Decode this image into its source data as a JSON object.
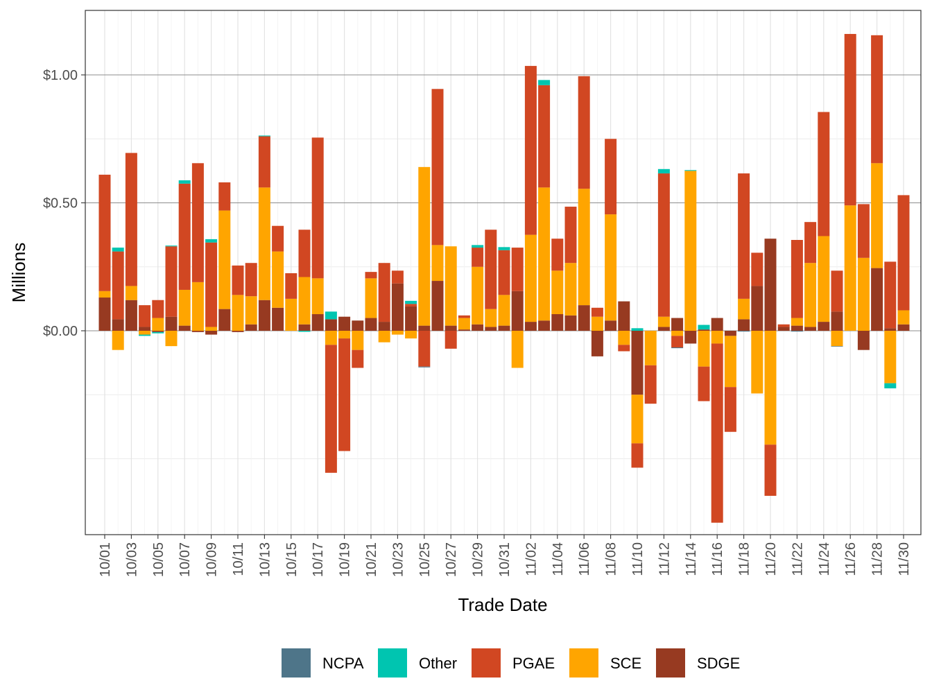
{
  "chart_data": {
    "type": "bar",
    "stacked": true,
    "title": "",
    "xlabel": "Trade Date",
    "ylabel": "Millions",
    "ylim": [
      -0.78,
      1.25
    ],
    "y_ticks": [
      0,
      0.5,
      1.0
    ],
    "y_tick_labels": [
      "$0.00",
      "$0.50",
      "$1.00"
    ],
    "categories": [
      "10/01",
      "10/02",
      "10/03",
      "10/04",
      "10/05",
      "10/06",
      "10/07",
      "10/08",
      "10/09",
      "10/10",
      "10/11",
      "10/12",
      "10/13",
      "10/14",
      "10/15",
      "10/16",
      "10/17",
      "10/18",
      "10/19",
      "10/20",
      "10/21",
      "10/22",
      "10/23",
      "10/24",
      "10/25",
      "10/26",
      "10/27",
      "10/28",
      "10/29",
      "10/30",
      "10/31",
      "11/01",
      "11/02",
      "11/03",
      "11/04",
      "11/05",
      "11/06",
      "11/07",
      "11/08",
      "11/09",
      "11/10",
      "11/11",
      "11/12",
      "11/13",
      "11/14",
      "11/15",
      "11/16",
      "11/17",
      "11/18",
      "11/19",
      "11/20",
      "11/21",
      "11/22",
      "11/23",
      "11/24",
      "11/25",
      "11/26",
      "11/27",
      "11/28",
      "11/29",
      "11/30"
    ],
    "x_tick_labels": [
      "10/01",
      "10/03",
      "10/05",
      "10/07",
      "10/09",
      "10/11",
      "10/13",
      "10/15",
      "10/17",
      "10/19",
      "10/21",
      "10/23",
      "10/25",
      "10/27",
      "10/29",
      "10/31",
      "11/02",
      "11/04",
      "11/06",
      "11/08",
      "11/10",
      "11/12",
      "11/14",
      "11/16",
      "11/18",
      "11/20",
      "11/22",
      "11/24",
      "11/26",
      "11/28",
      "11/30"
    ],
    "series_order": [
      "SDGE",
      "SCE",
      "PGAE",
      "Other",
      "NCPA"
    ],
    "series": [
      {
        "name": "NCPA",
        "color": "#4e7589",
        "values": [
          0,
          0,
          0,
          0,
          0,
          0,
          0,
          0,
          0,
          0,
          0,
          0,
          0,
          0,
          0,
          0,
          0,
          0,
          0,
          0,
          0,
          0,
          0,
          0,
          -0.003,
          0,
          0,
          0,
          0,
          0,
          0,
          0,
          0,
          0,
          0,
          0,
          0,
          0,
          0,
          0,
          0,
          0,
          0,
          -0.003,
          0,
          0,
          0,
          0,
          -0.003,
          0,
          0,
          0,
          -0.003,
          0,
          0,
          -0.002,
          0,
          0,
          0,
          0,
          0
        ]
      },
      {
        "name": "Other",
        "color": "#00c5b0",
        "values": [
          0,
          0.015,
          0,
          -0.005,
          -0.005,
          0.003,
          0.013,
          0,
          0.013,
          0,
          0,
          0,
          0.003,
          0,
          0,
          -0.004,
          0,
          0.03,
          0,
          0,
          0,
          0,
          0,
          0.012,
          0,
          0,
          0,
          0,
          0.01,
          0,
          0.012,
          0,
          0,
          0.02,
          0,
          0,
          0,
          0,
          0,
          0,
          0.01,
          0,
          0.017,
          0,
          0.003,
          0.018,
          0,
          0,
          0,
          0,
          0,
          0,
          0,
          0,
          0,
          0,
          0,
          0,
          0,
          -0.02,
          0
        ]
      },
      {
        "name": "PGAE",
        "color": "#d14722",
        "values": [
          0.455,
          0.265,
          0.52,
          0.085,
          0.07,
          0.275,
          0.415,
          0.465,
          0.33,
          0.11,
          0.115,
          0.13,
          0.2,
          0.1,
          0.1,
          0.185,
          0.55,
          -0.5,
          -0.44,
          -0.07,
          0.025,
          0.23,
          0.05,
          0.01,
          -0.14,
          0.61,
          -0.07,
          0.01,
          0.075,
          0.31,
          0.175,
          0.17,
          0.66,
          0.4,
          0.125,
          0.22,
          0.44,
          0.035,
          0.295,
          -0.025,
          -0.095,
          -0.15,
          0.56,
          -0.045,
          0,
          -0.135,
          -0.7,
          -0.175,
          0.49,
          0.13,
          -0.2,
          0.01,
          0.305,
          0.16,
          0.485,
          0.16,
          0.67,
          0.21,
          0.5,
          0.26,
          0.45
        ]
      },
      {
        "name": "SCE",
        "color": "#ffa500",
        "values": [
          0.025,
          -0.075,
          0.055,
          -0.015,
          0.05,
          -0.06,
          0.14,
          0.19,
          0.015,
          0.385,
          0.14,
          0.11,
          0.44,
          0.22,
          0.125,
          0.185,
          0.14,
          -0.055,
          -0.03,
          -0.075,
          0.155,
          -0.045,
          -0.015,
          -0.03,
          0.62,
          0.14,
          0.31,
          0.045,
          0.225,
          0.07,
          0.12,
          -0.145,
          0.34,
          0.52,
          0.17,
          0.205,
          0.455,
          0.055,
          0.415,
          -0.055,
          -0.19,
          -0.135,
          0.04,
          -0.02,
          0.625,
          -0.14,
          -0.05,
          -0.2,
          0.08,
          -0.245,
          -0.445,
          0,
          0.03,
          0.25,
          0.335,
          -0.06,
          0.49,
          0.285,
          0.41,
          -0.205,
          0.055
        ]
      },
      {
        "name": "SDGE",
        "color": "#973a21",
        "values": [
          0.13,
          0.045,
          0.12,
          0.015,
          -0.005,
          0.055,
          0.02,
          -0.005,
          -0.015,
          0.085,
          -0.005,
          0.025,
          0.12,
          0.09,
          0,
          0.025,
          0.065,
          0.045,
          0.055,
          0.04,
          0.05,
          0.035,
          0.185,
          0.095,
          0.02,
          0.195,
          0.02,
          0.005,
          0.025,
          0.015,
          0.02,
          0.155,
          0.035,
          0.04,
          0.065,
          0.06,
          0.1,
          -0.1,
          0.04,
          0.115,
          -0.25,
          0,
          0.015,
          0.05,
          -0.05,
          0.005,
          0.05,
          -0.02,
          0.045,
          0.175,
          0.36,
          0.015,
          0.02,
          0.015,
          0.035,
          0.075,
          0,
          -0.075,
          0.245,
          0.01,
          0.025
        ]
      }
    ],
    "legend": {
      "position": "bottom",
      "entries": [
        "NCPA",
        "Other",
        "PGAE",
        "SCE",
        "SDGE"
      ]
    },
    "grid": true
  }
}
